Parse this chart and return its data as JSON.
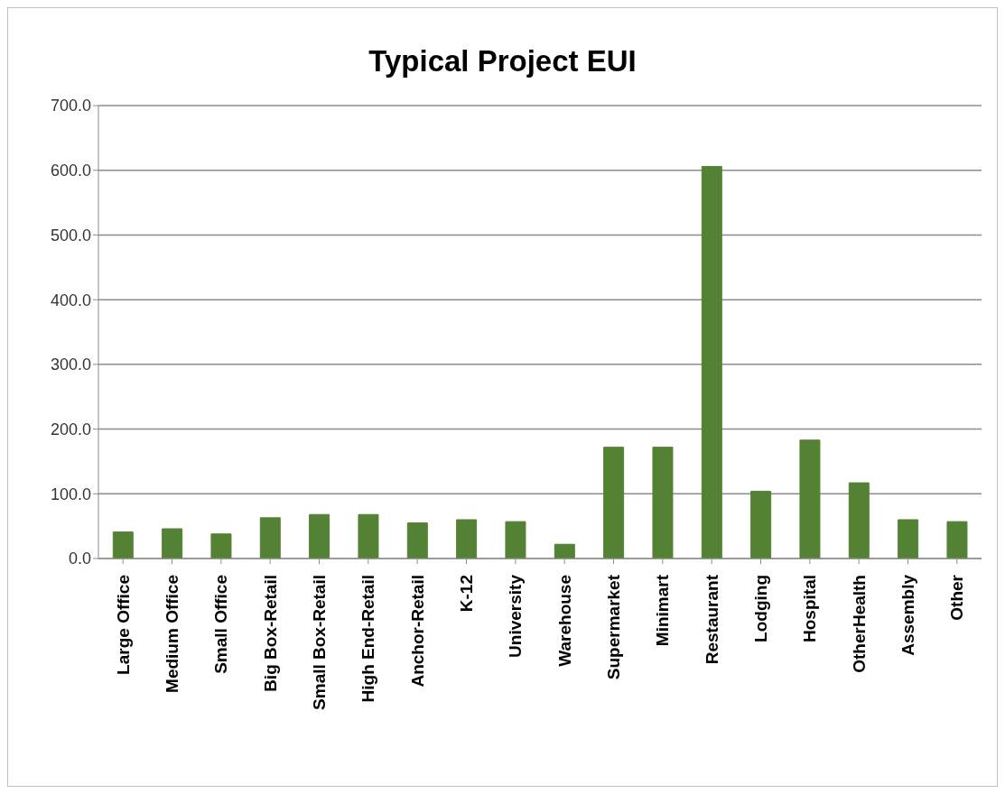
{
  "chart_data": {
    "type": "bar",
    "title": "Typical Project EUI",
    "categories": [
      "Large Office",
      "Medium Office",
      "Small Office",
      "Big Box-Retail",
      "Small Box-Retail",
      "High End-Retail",
      "Anchor-Retail",
      "K-12",
      "University",
      "Warehouse",
      "Supermarket",
      "Minimart",
      "Restaurant",
      "Lodging",
      "Hospital",
      "OtherHealth",
      "Assembly",
      "Other"
    ],
    "values": [
      41,
      46,
      38,
      63,
      68,
      68,
      55,
      60,
      57,
      22,
      172,
      172,
      606,
      104,
      183,
      117,
      60,
      57
    ],
    "color": "#548235",
    "ylim": [
      0,
      700
    ],
    "yticks": [
      {
        "value": 0,
        "label": "0.0"
      },
      {
        "value": 100,
        "label": "100.0"
      },
      {
        "value": 200,
        "label": "200.0"
      },
      {
        "value": 300,
        "label": "300.0"
      },
      {
        "value": 400,
        "label": "400.0"
      },
      {
        "value": 500,
        "label": "500.0"
      },
      {
        "value": 600,
        "label": "600.0"
      },
      {
        "value": 700,
        "label": "700.0"
      }
    ],
    "grid": "y",
    "legend": false
  }
}
